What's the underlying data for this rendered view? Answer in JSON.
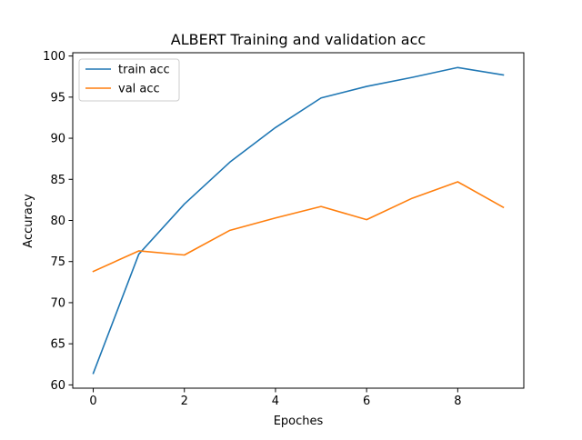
{
  "chart_data": {
    "type": "line",
    "title": "ALBERT Training and validation acc",
    "xlabel": "Epoches",
    "ylabel": "Accuracy",
    "x": [
      0,
      1,
      2,
      3,
      4,
      5,
      6,
      7,
      8,
      9
    ],
    "xlim": [
      -0.45,
      9.45
    ],
    "ylim": [
      59.6,
      100.4
    ],
    "xticks": [
      0,
      2,
      4,
      6,
      8
    ],
    "yticks": [
      60,
      65,
      70,
      75,
      80,
      85,
      90,
      95,
      100
    ],
    "grid": false,
    "legend_position": "upper-left",
    "series": [
      {
        "name": "train acc",
        "color": "#1f77b4",
        "values": [
          61.4,
          75.9,
          82.0,
          87.1,
          91.3,
          94.9,
          96.3,
          97.4,
          98.6,
          97.7
        ]
      },
      {
        "name": "val acc",
        "color": "#ff7f0e",
        "values": [
          73.8,
          76.3,
          75.8,
          78.8,
          80.3,
          81.7,
          80.1,
          82.7,
          84.7,
          81.6
        ]
      }
    ]
  }
}
